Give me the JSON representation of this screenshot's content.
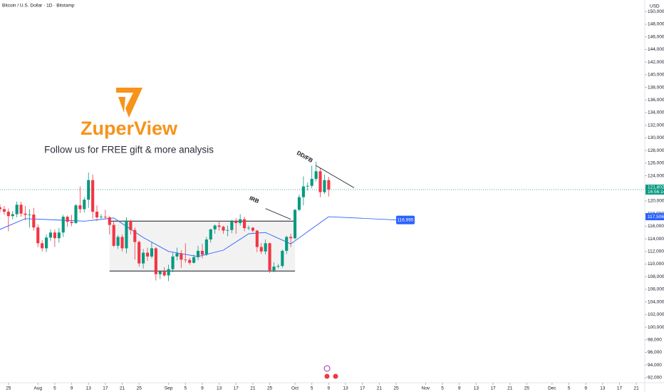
{
  "chart_data": {
    "type": "candlestick",
    "title": "Bitcoin / U.S. Dollar · 1D · Bitstamp",
    "y_unit": "USD",
    "up_color": "#089981",
    "down_color": "#f23645",
    "grid": false,
    "xlim": [
      "07-23",
      "12-23"
    ],
    "ylim": [
      91200,
      151840
    ],
    "yticks": [
      {
        "value": 92000,
        "label": "92,000"
      },
      {
        "value": 94000,
        "label": "94,000"
      },
      {
        "value": 96000,
        "label": "96,000"
      },
      {
        "value": 98000,
        "label": "98,000"
      },
      {
        "value": 100000,
        "label": "100,000"
      },
      {
        "value": 102000,
        "label": "102,000"
      },
      {
        "value": 104000,
        "label": "104,000"
      },
      {
        "value": 106000,
        "label": "106,000"
      },
      {
        "value": 108000,
        "label": "108,000"
      },
      {
        "value": 110000,
        "label": "110,000"
      },
      {
        "value": 112000,
        "label": "112,000"
      },
      {
        "value": 114000,
        "label": "114,000"
      },
      {
        "value": 116000,
        "label": "116,000"
      },
      {
        "value": 118000,
        "label": "118,000"
      },
      {
        "value": 120000,
        "label": "120,000"
      },
      {
        "value": 122000,
        "label": "122,000"
      },
      {
        "value": 124000,
        "label": "124,000"
      },
      {
        "value": 126000,
        "label": "126,000"
      },
      {
        "value": 128000,
        "label": "128,000"
      },
      {
        "value": 130000,
        "label": "130,000"
      },
      {
        "value": 132000,
        "label": "132,000"
      },
      {
        "value": 134000,
        "label": "134,000"
      },
      {
        "value": 136000,
        "label": "136,000"
      },
      {
        "value": 138000,
        "label": "138,000"
      },
      {
        "value": 140000,
        "label": "140,000"
      },
      {
        "value": 142000,
        "label": "142,000"
      },
      {
        "value": 144000,
        "label": "144,000"
      },
      {
        "value": 146000,
        "label": "146,000"
      },
      {
        "value": 148000,
        "label": "148,000"
      },
      {
        "value": 150000,
        "label": "150,000"
      }
    ],
    "xticks": [
      {
        "value": "07-25",
        "label": "25"
      },
      {
        "value": "08-01",
        "label": "Aug"
      },
      {
        "value": "08-05",
        "label": "5"
      },
      {
        "value": "08-09",
        "label": "9"
      },
      {
        "value": "08-13",
        "label": "13"
      },
      {
        "value": "08-17",
        "label": "17"
      },
      {
        "value": "08-21",
        "label": "21"
      },
      {
        "value": "08-25",
        "label": "25"
      },
      {
        "value": "09-01",
        "label": "Sep"
      },
      {
        "value": "09-05",
        "label": "5"
      },
      {
        "value": "09-09",
        "label": "9"
      },
      {
        "value": "09-13",
        "label": "13"
      },
      {
        "value": "09-17",
        "label": "17"
      },
      {
        "value": "09-21",
        "label": "21"
      },
      {
        "value": "09-25",
        "label": "25"
      },
      {
        "value": "10-01",
        "label": "Oct"
      },
      {
        "value": "10-05",
        "label": "5"
      },
      {
        "value": "10-09",
        "label": "9"
      },
      {
        "value": "10-13",
        "label": "13"
      },
      {
        "value": "10-17",
        "label": "17"
      },
      {
        "value": "10-21",
        "label": "21"
      },
      {
        "value": "10-25",
        "label": "25"
      },
      {
        "value": "11-01",
        "label": "Nov"
      },
      {
        "value": "11-05",
        "label": "5"
      },
      {
        "value": "11-09",
        "label": "9"
      },
      {
        "value": "11-13",
        "label": "13"
      },
      {
        "value": "11-17",
        "label": "17"
      },
      {
        "value": "11-21",
        "label": "21"
      },
      {
        "value": "11-25",
        "label": "25"
      },
      {
        "value": "12-01",
        "label": "Dec"
      },
      {
        "value": "12-05",
        "label": "5"
      },
      {
        "value": "12-09",
        "label": "9"
      },
      {
        "value": "12-13",
        "label": "13"
      },
      {
        "value": "12-17",
        "label": "17"
      },
      {
        "value": "12-21",
        "label": "21"
      }
    ],
    "x": [
      "07-23",
      "07-24",
      "07-25",
      "07-26",
      "07-27",
      "07-28",
      "07-29",
      "07-30",
      "07-31",
      "08-01",
      "08-02",
      "08-03",
      "08-04",
      "08-05",
      "08-06",
      "08-07",
      "08-08",
      "08-09",
      "08-10",
      "08-11",
      "08-12",
      "08-13",
      "08-14",
      "08-15",
      "08-16",
      "08-17",
      "08-18",
      "08-19",
      "08-20",
      "08-21",
      "08-22",
      "08-23",
      "08-24",
      "08-25",
      "08-26",
      "08-27",
      "08-28",
      "08-29",
      "08-30",
      "08-31",
      "09-01",
      "09-02",
      "09-03",
      "09-04",
      "09-05",
      "09-06",
      "09-07",
      "09-08",
      "09-09",
      "09-10",
      "09-11",
      "09-12",
      "09-13",
      "09-14",
      "09-15",
      "09-16",
      "09-17",
      "09-18",
      "09-19",
      "09-20",
      "09-21",
      "09-22",
      "09-23",
      "09-24",
      "09-25",
      "09-26",
      "09-27",
      "09-28",
      "09-29",
      "09-30",
      "10-01",
      "10-02",
      "10-03",
      "10-04",
      "10-05",
      "10-06",
      "10-07",
      "10-08",
      "10-09"
    ],
    "open": [
      119000,
      118700,
      118300,
      117600,
      117900,
      119400,
      118000,
      117800,
      117850,
      115800,
      113300,
      112500,
      114200,
      115000,
      114100,
      115000,
      117500,
      116700,
      116500,
      119300,
      118700,
      120200,
      123300,
      118300,
      117400,
      117500,
      117400,
      116200,
      112900,
      114300,
      112500,
      116900,
      115400,
      113500,
      110100,
      111800,
      111200,
      112500,
      108400,
      108800,
      108200,
      109200,
      111200,
      111700,
      110700,
      110650,
      110200,
      111100,
      112100,
      111500,
      113900,
      115500,
      116100,
      115900,
      115300,
      115400,
      116800,
      116500,
      117100,
      115700,
      115750,
      115300,
      112700,
      112000,
      113300,
      109000,
      109600,
      109700,
      112100,
      114300,
      114100,
      118600,
      120600,
      122300,
      122400,
      123500,
      124700,
      121400,
      123300
    ],
    "high": [
      119500,
      119200,
      118800,
      118400,
      119900,
      119900,
      119200,
      118700,
      118900,
      116300,
      113800,
      114700,
      115500,
      115500,
      115700,
      117800,
      117700,
      117800,
      119500,
      122300,
      120600,
      124500,
      124200,
      119300,
      117900,
      118600,
      117600,
      116800,
      114600,
      114700,
      117400,
      117000,
      115800,
      113700,
      112400,
      112600,
      113500,
      112700,
      108900,
      109500,
      109900,
      111800,
      112600,
      112200,
      113300,
      111000,
      111500,
      112900,
      113200,
      114300,
      115600,
      116300,
      116700,
      116100,
      116100,
      117000,
      117300,
      117900,
      117500,
      116100,
      115900,
      115400,
      113300,
      113900,
      113400,
      110300,
      110000,
      112300,
      114500,
      114800,
      118700,
      121000,
      123900,
      122900,
      125600,
      126200,
      125200,
      124200,
      123800
    ],
    "low": [
      118200,
      117800,
      115200,
      117100,
      117400,
      117500,
      116900,
      115800,
      115300,
      112700,
      112000,
      111900,
      113700,
      112700,
      113400,
      114300,
      115900,
      116000,
      116400,
      118100,
      118200,
      118900,
      117200,
      116800,
      117200,
      117100,
      114700,
      112700,
      112400,
      112000,
      111700,
      114700,
      110700,
      109600,
      109300,
      110500,
      110900,
      107400,
      107600,
      108000,
      107300,
      108700,
      110600,
      109400,
      110200,
      109900,
      110100,
      110600,
      110900,
      111300,
      113400,
      114800,
      115300,
      114800,
      114400,
      114900,
      114800,
      116100,
      115200,
      115400,
      115000,
      111900,
      111600,
      111500,
      108600,
      108700,
      109300,
      109400,
      111600,
      112700,
      113900,
      118400,
      119300,
      121600,
      122000,
      123100,
      120600,
      121100,
      120700
    ],
    "close": [
      118700,
      118300,
      117600,
      117900,
      119400,
      118000,
      117800,
      117850,
      115800,
      113300,
      112500,
      114200,
      115000,
      114100,
      115000,
      117500,
      116700,
      116500,
      119300,
      118700,
      120200,
      123300,
      118300,
      117400,
      117500,
      117400,
      116200,
      112900,
      114300,
      112500,
      116900,
      115400,
      113500,
      110100,
      111800,
      111200,
      112500,
      108400,
      108800,
      108200,
      109200,
      111200,
      111700,
      110700,
      110650,
      110200,
      111100,
      112100,
      111500,
      113900,
      115500,
      116100,
      115900,
      115300,
      115400,
      116800,
      116500,
      117100,
      115700,
      115750,
      115300,
      112700,
      112000,
      113300,
      109000,
      109600,
      109700,
      112100,
      114300,
      114100,
      118600,
      120600,
      122300,
      122400,
      123500,
      124700,
      121400,
      123300,
      121802
    ],
    "last_price": {
      "value": 121802,
      "label": "121,802",
      "countdown": "16:56:14",
      "color": "#089981"
    },
    "moving_average": {
      "color": "#2962ff",
      "x": [
        "07-23",
        "07-29",
        "08-05",
        "08-12",
        "08-19",
        "08-26",
        "09-01",
        "09-08",
        "09-14",
        "09-20",
        "09-24",
        "09-30",
        "10-05",
        "10-09"
      ],
      "values": [
        115500,
        117200,
        117000,
        116800,
        117300,
        114200,
        112000,
        111200,
        112200,
        114800,
        115000,
        113200,
        115600,
        117506
      ],
      "last_label": "117,506"
    },
    "projection": {
      "value": 116995,
      "label": "116,995",
      "x1": "10-09",
      "x2": "10-25"
    },
    "range_box": {
      "start": "08-18",
      "end": "10-01",
      "top": 116800,
      "bottom": 108900
    },
    "annotations": [
      {
        "text": "DD/FB",
        "x1": "10-06",
        "y1": 125600,
        "x2": "10-15",
        "y2": 122100
      },
      {
        "text": "IRB",
        "x1": "09-24",
        "y1": 118800,
        "x2": "09-30",
        "y2": 117100
      }
    ],
    "watermark": {
      "name": "ZuperView",
      "tagline": "Follow us for FREE gift & more analysis"
    }
  }
}
